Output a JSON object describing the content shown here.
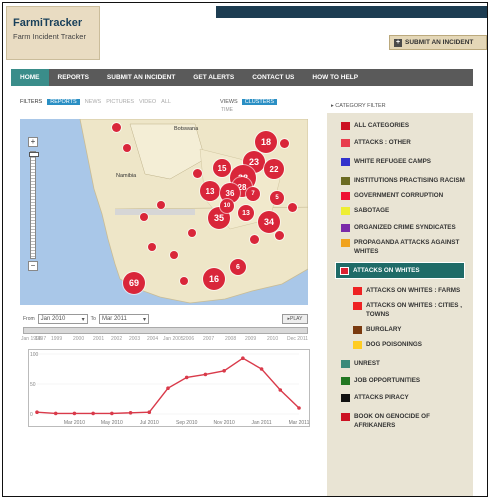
{
  "site": {
    "title": "FarmiTracker",
    "subtitle": "Farm Incident Tracker",
    "submit_label": "SUBMIT AN INCIDENT"
  },
  "nav": [
    {
      "label": "HOME",
      "active": true
    },
    {
      "label": "REPORTS"
    },
    {
      "label": "SUBMIT AN INCIDENT"
    },
    {
      "label": "GET ALERTS"
    },
    {
      "label": "CONTACT US"
    },
    {
      "label": "HOW TO HELP"
    }
  ],
  "filters": {
    "label": "FILTERS",
    "items": [
      "REPORTS",
      "NEWS",
      "PICTURES",
      "VIDEO",
      "ALL"
    ]
  },
  "views": {
    "label": "VIEWS",
    "clusters": "CLUSTERS",
    "time": "TIME"
  },
  "map": {
    "labels": {
      "botswana": "Botswana",
      "namibia": "Namibia"
    },
    "clusters": [
      {
        "count": "18"
      },
      {
        "count": "23"
      },
      {
        "count": "22"
      },
      {
        "count": "15"
      },
      {
        "count": "38"
      },
      {
        "count": "28"
      },
      {
        "count": "13"
      },
      {
        "count": "36"
      },
      {
        "count": "35"
      },
      {
        "count": "34"
      },
      {
        "count": "69"
      },
      {
        "count": "16"
      },
      {
        "count": "13"
      },
      {
        "count": "10"
      },
      {
        "count": "5"
      },
      {
        "count": "7"
      },
      {
        "count": "6"
      }
    ]
  },
  "range": {
    "from_label": "From",
    "from_value": "Jan 2010",
    "to_label": "To",
    "to_value": "Mar 2011",
    "play_label": "PLAY"
  },
  "timeline_years": [
    "Jan 1996",
    "1997",
    "1999",
    "2000",
    "2001",
    "2002",
    "2003",
    "2004",
    "Jan 2005",
    "2006",
    "2007",
    "2008",
    "2009",
    "2010",
    "Dec 2011"
  ],
  "chart_data": {
    "type": "line",
    "categories": [
      "Jan 2010",
      "Feb 2010",
      "Mar 2010",
      "Apr 2010",
      "May 2010",
      "Jun 2010",
      "Jul 2010",
      "Aug 2010",
      "Sep 2010",
      "Oct 2010",
      "Nov 2010",
      "Dec 2010",
      "Jan 2011",
      "Feb 2011",
      "Mar 2011"
    ],
    "x_tick_labels": [
      "Mar 2010",
      "May 2010",
      "Jul 2010",
      "Sep 2010",
      "Nov 2010",
      "Jan 2011",
      "Mar 2011"
    ],
    "values": [
      3,
      1,
      1,
      1,
      1,
      2,
      3,
      43,
      61,
      66,
      72,
      93,
      75,
      40,
      10
    ],
    "ylim": [
      0,
      100
    ],
    "y_ticks": [
      "0",
      "50",
      "100"
    ],
    "color": "#d93a4a"
  },
  "sidebar": {
    "header": "CATEGORY FILTER",
    "categories": [
      {
        "label": "ALL CATEGORIES",
        "color": "#cc1122"
      },
      {
        "label": "ATTACKS : OTHER",
        "color": "#e83c4d"
      },
      {
        "label": "WHITE REFUGEE CAMPS",
        "color": "#3333cc"
      },
      {
        "label": "INSTITUTIONS PRACTISING RACISM",
        "color": "#6b6b22"
      },
      {
        "label": "GOVERNMENT CORRUPTION",
        "color": "#ee1133"
      },
      {
        "label": "SABOTAGE",
        "color": "#eeee33"
      },
      {
        "label": "ORGANIZED CRIME SYNDICATES",
        "color": "#7a2aa8"
      },
      {
        "label": "PROPAGANDA ATTACKS AGAINST WHITES",
        "color": "#f0a21e"
      },
      {
        "label": "ATTACKS ON WHITES",
        "color": "#dd2233",
        "active": true
      },
      {
        "label": "ATTACKS ON WHITES : FARMS",
        "color": "#ee2222",
        "sub": true
      },
      {
        "label": "ATTACKS ON WHITES : CITIES , TOWNS",
        "color": "#ee2222",
        "sub": true
      },
      {
        "label": "BURGLARY",
        "color": "#7a3a10",
        "sub": true
      },
      {
        "label": "DOG POISONINGS",
        "color": "#ffcc22",
        "sub": true
      },
      {
        "label": "UNREST",
        "color": "#3a8a7a"
      },
      {
        "label": "JOB OPPORTUNITIES",
        "color": "#227722"
      },
      {
        "label": "ATTACKS PIRACY",
        "color": "#111111"
      },
      {
        "label": "BOOK ON GENOCIDE OF AFRIKANERS",
        "color": "#cc1122"
      }
    ]
  }
}
